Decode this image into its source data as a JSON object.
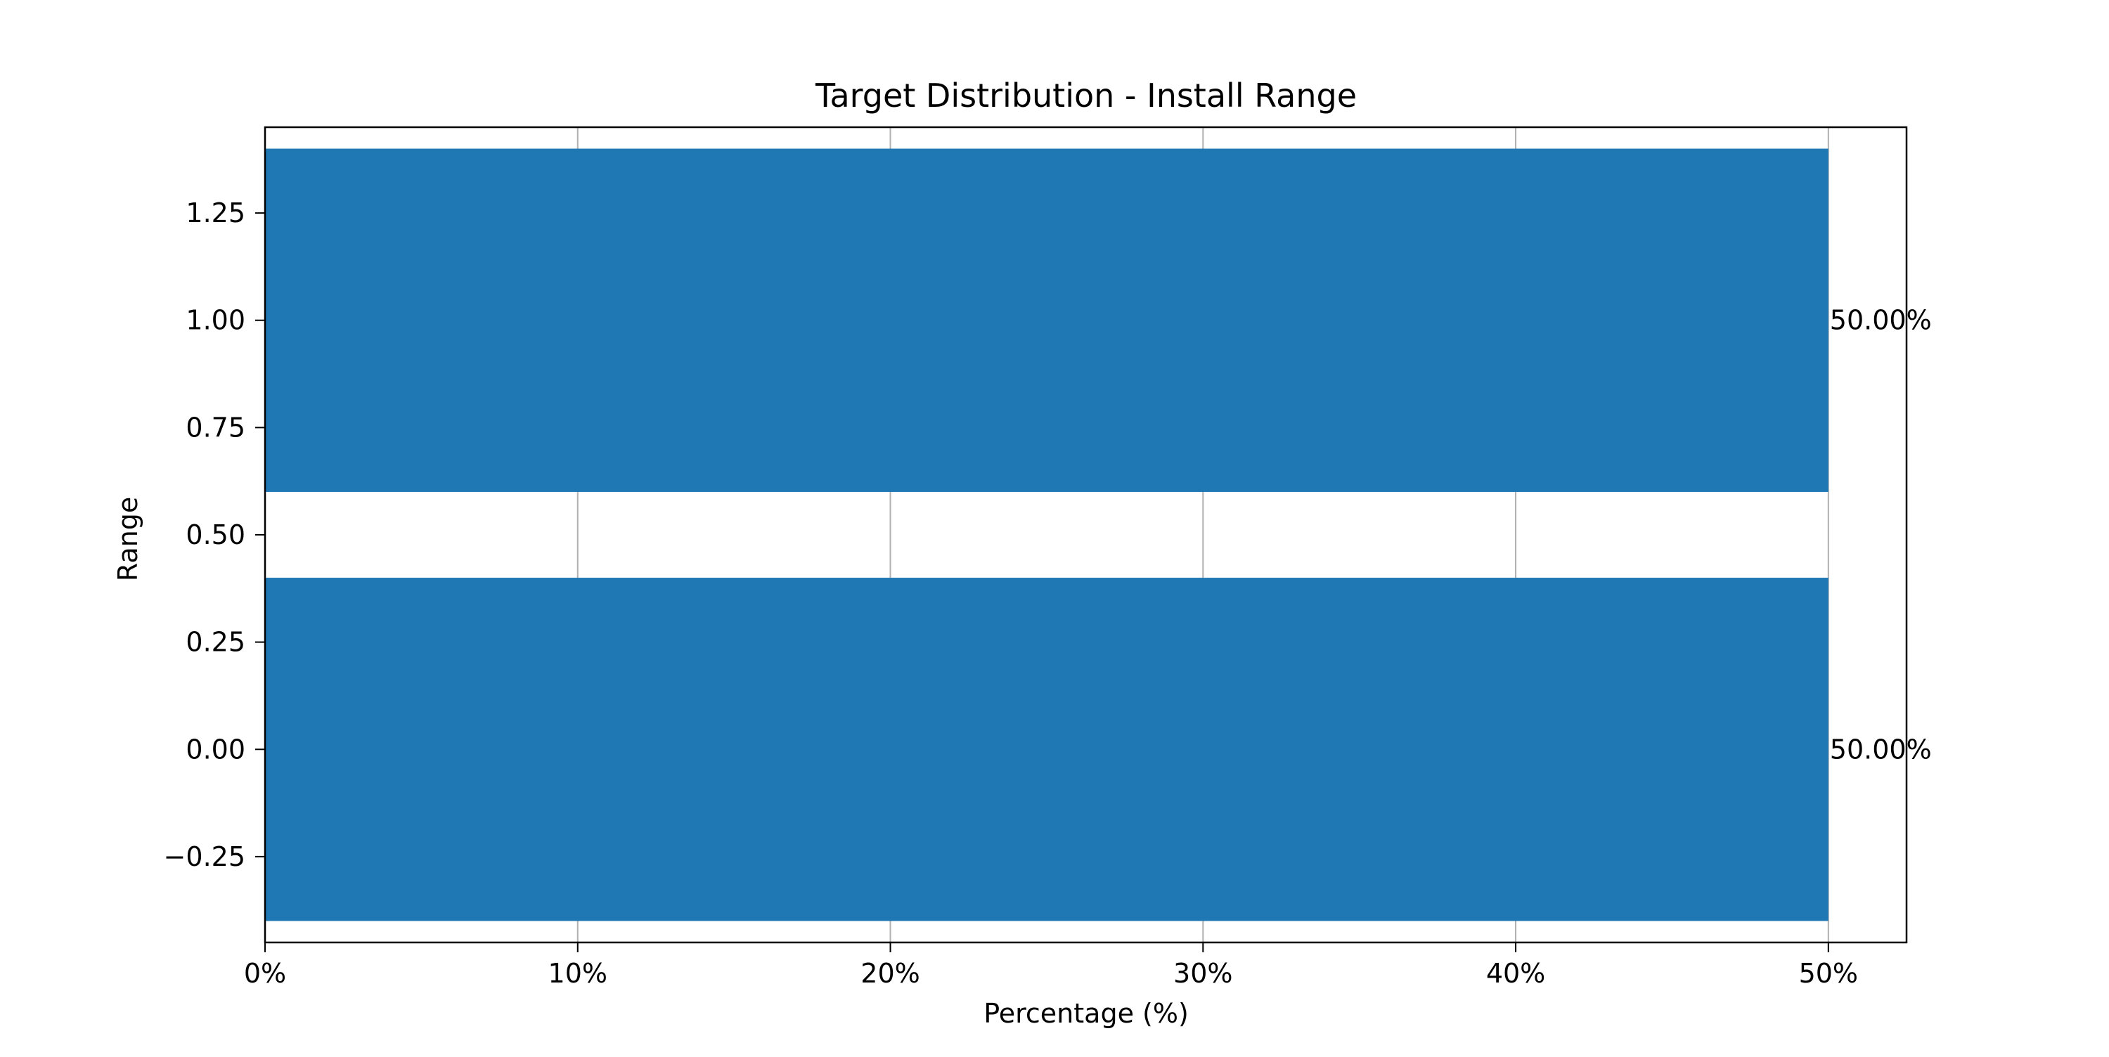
{
  "chart_data": {
    "type": "bar",
    "orientation": "horizontal",
    "title": "Target Distribution - Install Range",
    "xlabel": "Percentage (%)",
    "ylabel": "Range",
    "categories": [
      0,
      1
    ],
    "values": [
      50.0,
      50.0
    ],
    "data_labels": [
      "50.00%",
      "50.00%"
    ],
    "bar_width": 0.8,
    "xlim": [
      0,
      52.5
    ],
    "ylim": [
      -0.45,
      1.45
    ],
    "xticks": [
      0,
      10,
      20,
      30,
      40,
      50
    ],
    "xtick_labels": [
      "0%",
      "10%",
      "20%",
      "30%",
      "40%",
      "50%"
    ],
    "yticks": [
      -0.25,
      0.0,
      0.25,
      0.5,
      0.75,
      1.0,
      1.25
    ],
    "ytick_labels": [
      "−0.25",
      "0.00",
      "0.25",
      "0.50",
      "0.75",
      "1.00",
      "1.25"
    ],
    "grid": {
      "x": true,
      "y": false
    },
    "colors": {
      "bar": "#1f77b4",
      "grid": "#b0b0b0",
      "axis": "#000000"
    },
    "legend": null
  }
}
